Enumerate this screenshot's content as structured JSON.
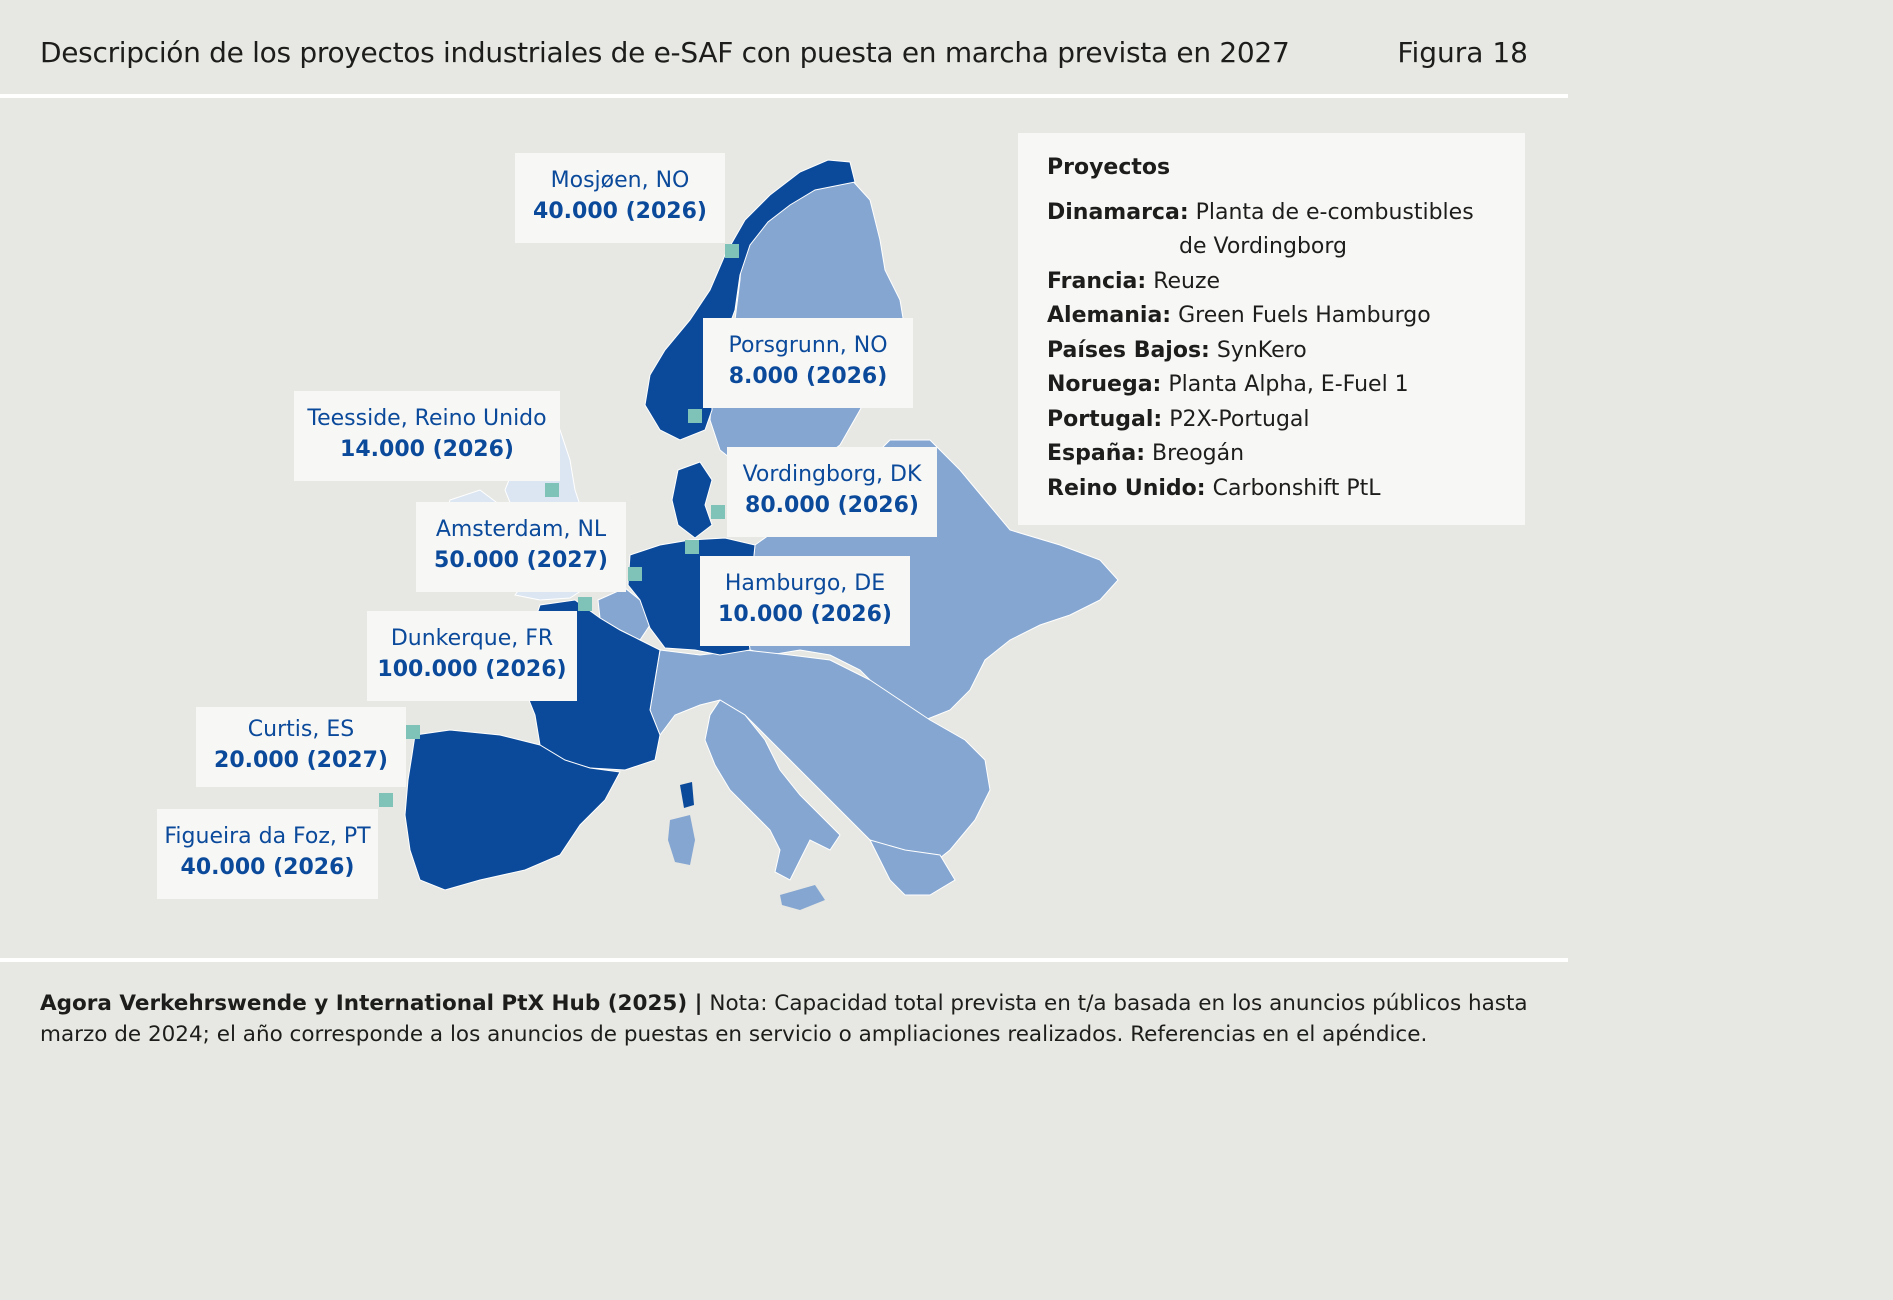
{
  "header": {
    "title": "Descripción de los proyectos industriales de e-SAF con puesta en marcha prevista en 2027",
    "figure": "Figura 18"
  },
  "colors": {
    "background": "#e7e7e3",
    "project_country": "#0b4a9b",
    "other_country": "#84a6d1",
    "uk_ireland": "#dce6f2",
    "marker": "#7fc2b8",
    "label_text": "#0b4a9b"
  },
  "projects": [
    {
      "city": "Mosjøen, NO",
      "capacity": "40.000 (2026)"
    },
    {
      "city": "Porsgrunn, NO",
      "capacity": "8.000 (2026)"
    },
    {
      "city": "Teesside, Reino Unido",
      "capacity": "14.000 (2026)"
    },
    {
      "city": "Vordingborg, DK",
      "capacity": "80.000 (2026)"
    },
    {
      "city": "Amsterdam, NL",
      "capacity": "50.000 (2027)"
    },
    {
      "city": "Hamburgo, DE",
      "capacity": "10.000 (2026)"
    },
    {
      "city": "Dunkerque, FR",
      "capacity": "100.000 (2026)"
    },
    {
      "city": "Curtis, ES",
      "capacity": "20.000 (2027)"
    },
    {
      "city": "Figueira da Foz, PT",
      "capacity": "40.000 (2026)"
    }
  ],
  "legend": {
    "title": "Proyectos",
    "items": [
      {
        "country": "Dinamarca:",
        "projects": "Planta de e-combustibles",
        "projects_cont": "de Vordingborg"
      },
      {
        "country": "Francia:",
        "projects": "Reuze"
      },
      {
        "country": "Alemania:",
        "projects": "Green Fuels Hamburgo"
      },
      {
        "country": "Países Bajos:",
        "projects": "SynKero"
      },
      {
        "country": "Noruega:",
        "projects": "Planta Alpha, E-Fuel 1"
      },
      {
        "country": "Portugal:",
        "projects": "P2X-Portugal"
      },
      {
        "country": "España:",
        "projects": "Breogán"
      },
      {
        "country": "Reino Unido:",
        "projects": "Carbonshift PtL"
      }
    ]
  },
  "footer": {
    "source": "Agora Verkehrswende y International PtX Hub (2025) |",
    "note": " Nota: Capacidad total prevista en t/a basada en los anuncios públicos hasta marzo de 2024; el año corresponde a los anuncios de puestas en servicio o ampliaciones realizados. Referencias en el apéndice."
  }
}
